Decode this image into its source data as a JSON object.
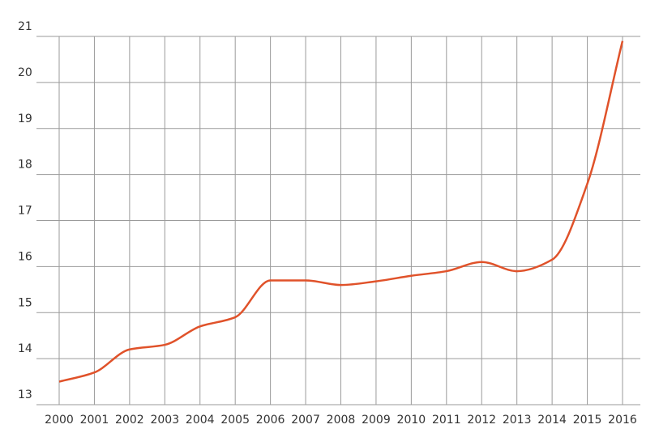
{
  "chart_data": {
    "type": "line",
    "categories": [
      "2000",
      "2001",
      "2002",
      "2003",
      "2004",
      "2005",
      "2006",
      "2007",
      "2008",
      "2009",
      "2010",
      "2011",
      "2012",
      "2013",
      "2014",
      "2015",
      "2016"
    ],
    "series": [
      {
        "color": "#e0522a",
        "values": [
          13.5,
          13.7,
          14.2,
          14.3,
          14.7,
          14.9,
          15.7,
          15.7,
          15.6,
          15.68,
          15.8,
          15.9,
          16.1,
          15.9,
          16.15,
          17.8,
          20.9
        ]
      }
    ],
    "ylim": [
      13,
      21
    ],
    "yticks": [
      13,
      14,
      15,
      16,
      17,
      18,
      19,
      20,
      21
    ],
    "grid": true
  }
}
